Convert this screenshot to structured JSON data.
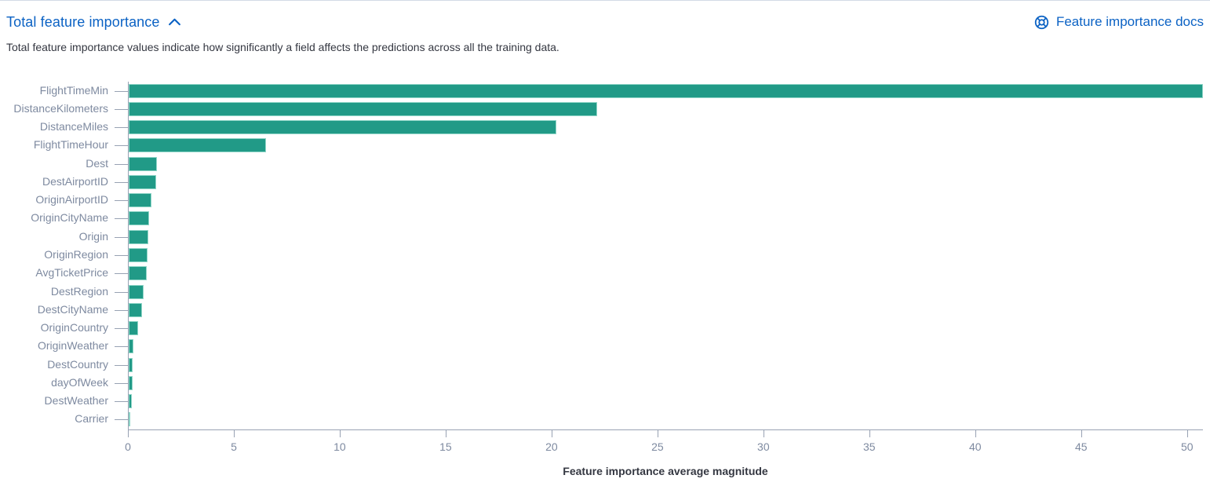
{
  "header": {
    "title": "Total feature importance",
    "docs_link": "Feature importance docs"
  },
  "description": "Total feature importance values indicate how significantly a field affects the predictions across all the training data.",
  "colors": {
    "bar": "#219a87",
    "bar_border": "#8fd5c7",
    "link_blue": "#0b62c4",
    "axis_line": "#98a2b3",
    "axis_label": "#7e8aa0",
    "axis_title": "#343741",
    "description_text": "#343741",
    "top_border": "#d3dae6"
  },
  "chart_data": {
    "type": "bar",
    "orientation": "horizontal",
    "title": "",
    "xlabel": "Feature importance average magnitude",
    "ylabel": "",
    "xlim": [
      0,
      50.75
    ],
    "x_ticks": [
      0,
      5,
      10,
      15,
      20,
      25,
      30,
      35,
      40,
      45,
      50
    ],
    "grid": false,
    "legend": false,
    "categories": [
      "FlightTimeMin",
      "DistanceKilometers",
      "DistanceMiles",
      "FlightTimeHour",
      "Dest",
      "DestAirportID",
      "OriginAirportID",
      "OriginCityName",
      "Origin",
      "OriginRegion",
      "AvgTicketPrice",
      "DestRegion",
      "DestCityName",
      "OriginCountry",
      "OriginWeather",
      "DestCountry",
      "dayOfWeek",
      "DestWeather",
      "Carrier"
    ],
    "values": [
      50.7,
      22.1,
      20.2,
      6.5,
      1.35,
      1.3,
      1.07,
      0.95,
      0.93,
      0.88,
      0.85,
      0.72,
      0.62,
      0.44,
      0.22,
      0.19,
      0.19,
      0.15,
      0.07
    ]
  }
}
